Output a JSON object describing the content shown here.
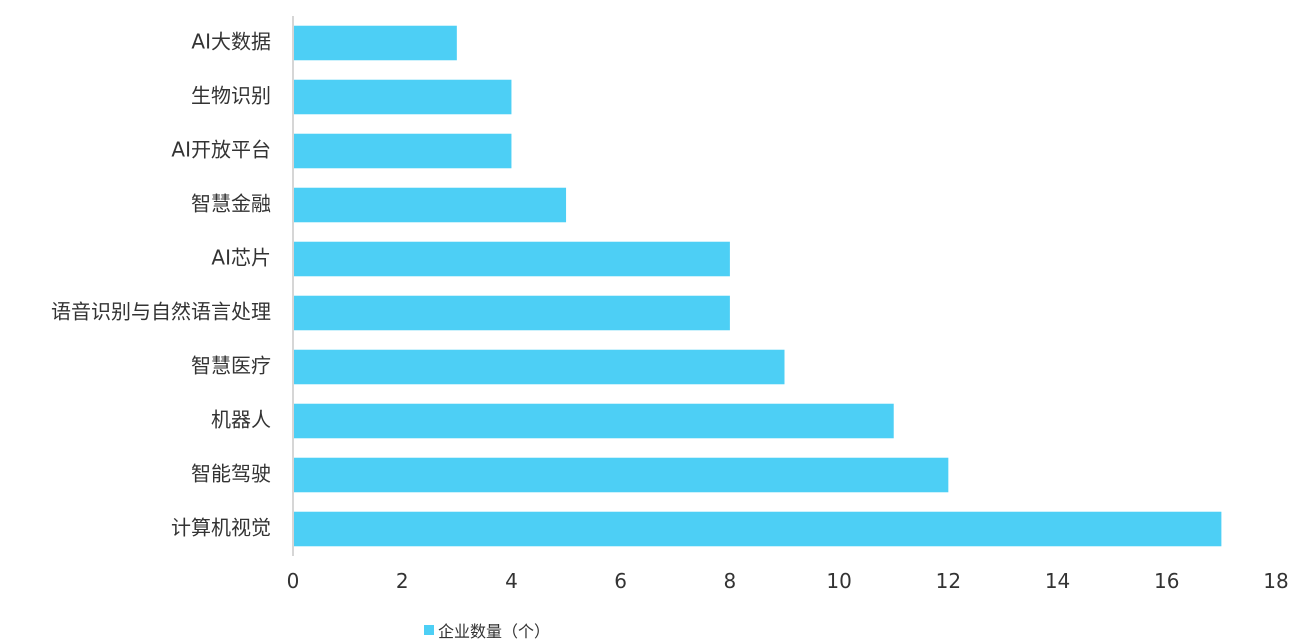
{
  "chart_data": {
    "type": "bar",
    "orientation": "horizontal",
    "categories": [
      "AI大数据",
      "生物识别",
      "AI开放平台",
      "智慧金融",
      "AI芯片",
      "语音识别与自然语言处理",
      "智慧医疗",
      "机器人",
      "智能驾驶",
      "计算机视觉"
    ],
    "series": [
      {
        "name": "企业数量（个）",
        "values": [
          3,
          4,
          4,
          5,
          8,
          8,
          9,
          11,
          12,
          17
        ]
      }
    ],
    "title": "",
    "xlabel": "",
    "ylabel": "",
    "xlim": [
      0,
      18
    ],
    "x_ticks": [
      "0",
      "2",
      "4",
      "6",
      "8",
      "10",
      "12",
      "14",
      "16",
      "18"
    ],
    "grid": false,
    "legend": "bottom"
  },
  "colors": {
    "bar": "#4DCFF5",
    "axis": "#C8C8C8",
    "text": "#333333"
  }
}
